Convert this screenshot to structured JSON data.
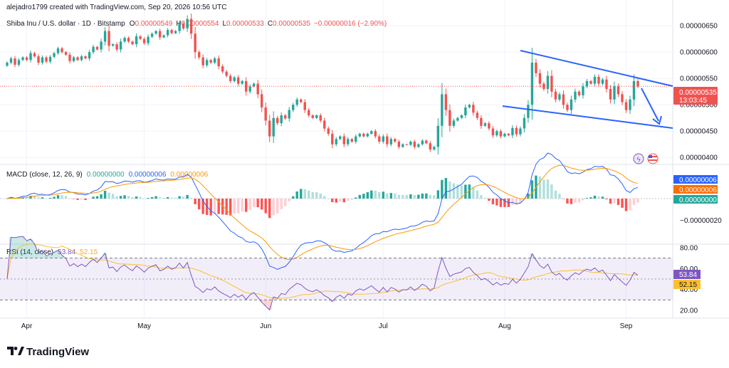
{
  "header": {
    "attribution": "alejadro1799 created with TradingView.com, Sep 20, 2026 10:56 UTC",
    "symbol": "Shiba Inu / U.S. dollar · 1D · Bitstamp",
    "ohlc": {
      "o_label": "O",
      "o": "0.00000549",
      "h_label": "H",
      "h": "0.00000554",
      "l_label": "L",
      "l": "0.00000533",
      "c_label": "C",
      "c": "0.00000535",
      "change": "−0.00000016 (−2.90%)"
    }
  },
  "price_axis": {
    "ticks": [
      "0.00000650",
      "0.00000600",
      "0.00000550",
      "0.00000500",
      "0.00000450",
      "0.00000400"
    ],
    "current_price": "0.00000535",
    "countdown": "13:03:45"
  },
  "macd": {
    "title": "MACD (close, 12, 26, 9)",
    "v1": "0.00000000",
    "v2": "0.00000006",
    "v3": "0.00000006",
    "axis_ticks": [
      "−0.00000020"
    ],
    "badges": [
      "0.00000006",
      "0.00000006",
      "0.00000000"
    ]
  },
  "rsi": {
    "title": "RSI (14, close)",
    "v1": "53.84",
    "v2": "52.15",
    "axis_ticks": [
      "80.00",
      "60.00",
      "40.00",
      "20.00"
    ],
    "badges": [
      "53.84",
      "52.15"
    ]
  },
  "time_axis": [
    "Apr",
    "May",
    "Jun",
    "Jul",
    "Aug",
    "Sep"
  ],
  "branding": {
    "logo_text": "TradingView"
  },
  "colors": {
    "up": "#26a69a",
    "down": "#ef5350",
    "macd_line": "#2962ff",
    "signal_line": "#ff9800",
    "rsi_line": "#7e57c2",
    "rsi_ma": "#fbc02d",
    "trend": "#2962ff",
    "price_line": "#ef5350"
  },
  "chart_data": [
    {
      "type": "candlestick",
      "title": "Shiba Inu / U.S. dollar · 1D · Bitstamp",
      "ylim": [
        3.8e-06,
        6.8e-06
      ],
      "x_ticks": [
        "Apr",
        "May",
        "Jun",
        "Jul",
        "Aug",
        "Sep"
      ],
      "closes": [
        5.8e-06,
        5.88e-06,
        5.76e-06,
        5.85e-06,
        5.9e-06,
        5.85e-06,
        5.98e-06,
        5.92e-06,
        5.8e-06,
        5.9e-06,
        5.82e-06,
        5.91e-06,
        5.98e-06,
        6.07e-06,
        6e-06,
        5.95e-06,
        5.83e-06,
        5.9e-06,
        5.85e-06,
        5.92e-06,
        5.88e-06,
        6e-06,
        6.1e-06,
        6.05e-06,
        6.2e-06,
        6.4e-06,
        6.12e-06,
        6.15e-06,
        6.05e-06,
        6.2e-06,
        6.27e-06,
        6.2e-06,
        6.15e-06,
        6.3e-06,
        6.25e-06,
        6.17e-06,
        6.29e-06,
        6.35e-06,
        6.4e-06,
        6.28e-06,
        6.32e-06,
        6.42e-06,
        6.36e-06,
        6.4e-06,
        6.54e-06,
        6.45e-06,
        6.63e-06,
        6.35e-06,
        6e-06,
        5.9e-06,
        5.75e-06,
        5.85e-06,
        5.8e-06,
        5.88e-06,
        5.73e-06,
        5.63e-06,
        5.55e-06,
        5.45e-06,
        5.52e-06,
        5.4e-06,
        5.45e-06,
        5.25e-06,
        5.35e-06,
        5.4e-06,
        5.2e-06,
        4.95e-06,
        4.7e-06,
        4.4e-06,
        4.75e-06,
        4.65e-06,
        4.8e-06,
        4.74e-06,
        4.9e-06,
        5e-06,
        5.1e-06,
        5.05e-06,
        4.9e-06,
        4.8e-06,
        4.75e-06,
        4.8e-06,
        4.7e-06,
        4.55e-06,
        4.45e-06,
        4.25e-06,
        4.35e-06,
        4.4e-06,
        4.25e-06,
        4.35e-06,
        4.3e-06,
        4.4e-06,
        4.45e-06,
        4.4e-06,
        4.45e-06,
        4.5e-06,
        4.4e-06,
        4.3e-06,
        4.4e-06,
        4.25e-06,
        4.35e-06,
        4.3e-06,
        4.2e-06,
        4.25e-06,
        4.24e-06,
        4.3e-06,
        4.2e-06,
        4.25e-06,
        4.32e-06,
        4.27e-06,
        4.15e-06,
        4.2e-06,
        4.6e-06,
        5.2e-06,
        4.9e-06,
        4.6e-06,
        4.7e-06,
        4.75e-06,
        4.8e-06,
        4.95e-06,
        5e-06,
        4.85e-06,
        4.75e-06,
        4.6e-06,
        4.65e-06,
        4.55e-06,
        4.42e-06,
        4.5e-06,
        4.4e-06,
        4.45e-06,
        4.42e-06,
        4.56e-06,
        4.44e-06,
        4.55e-06,
        4.75e-06,
        5e-06,
        5.8e-06,
        5.6e-06,
        5.4e-06,
        5.3e-06,
        5.55e-06,
        5.25e-06,
        5.1e-06,
        5.2e-06,
        5e-06,
        4.9e-06,
        5.1e-06,
        5.25e-06,
        5.18e-06,
        5.35e-06,
        5.45e-06,
        5.4e-06,
        5.53e-06,
        5.4e-06,
        5.48e-06,
        5.3e-06,
        5.1e-06,
        5.35e-06,
        5.2e-06,
        5.05e-06,
        4.9e-06,
        5.1e-06,
        5.45e-06,
        5.35e-06
      ]
    },
    {
      "type": "line",
      "title": "MACD (close, 12, 26, 9)",
      "series": [
        {
          "name": "MACD"
        },
        {
          "name": "Signal"
        },
        {
          "name": "Histogram"
        }
      ],
      "ylim": [
        -3e-07,
        1e-07
      ],
      "y_ticks": [
        -2e-07
      ]
    },
    {
      "type": "line",
      "title": "RSI (14, close)",
      "ylim": [
        10,
        88
      ],
      "y_ticks": [
        80,
        60,
        40,
        20
      ],
      "bands": [
        70,
        50,
        30
      ],
      "series": [
        {
          "name": "RSI"
        },
        {
          "name": "RSI MA"
        }
      ]
    }
  ]
}
